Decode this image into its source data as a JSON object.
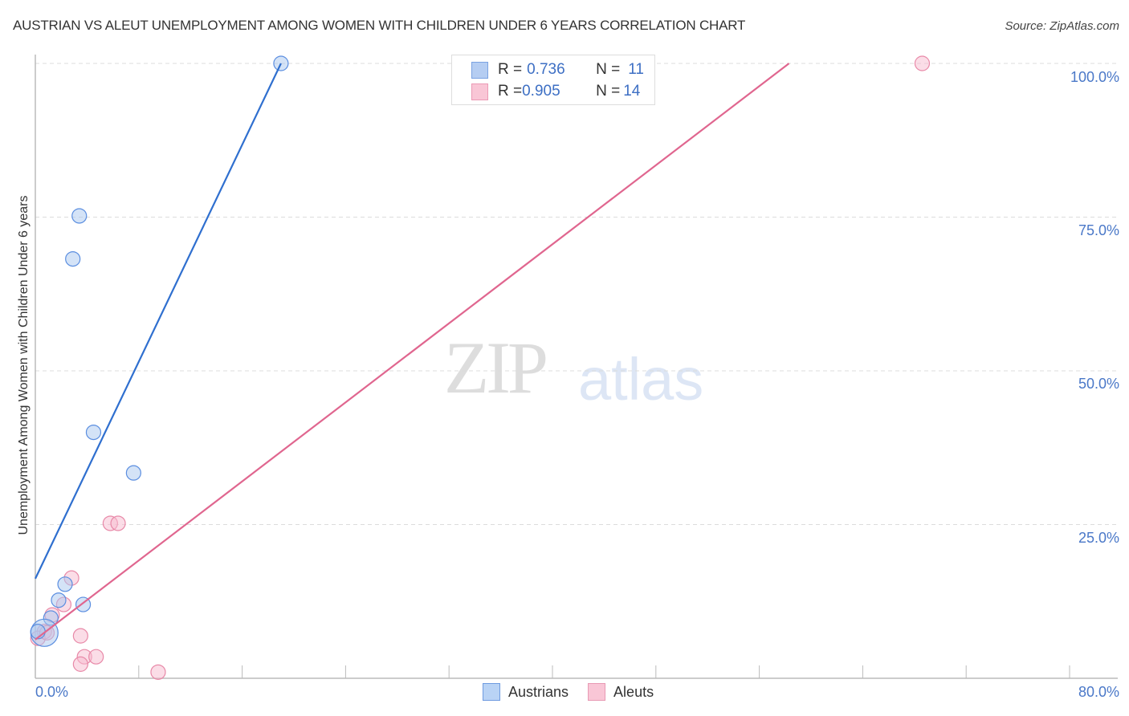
{
  "header": {
    "title": "AUSTRIAN VS ALEUT UNEMPLOYMENT AMONG WOMEN WITH CHILDREN UNDER 6 YEARS CORRELATION CHART",
    "source": "Source: ZipAtlas.com"
  },
  "watermark": {
    "zip": "ZIP",
    "atlas": "atlas"
  },
  "legend": {
    "austrians": {
      "r_label": "R = ",
      "r_value": "0.736",
      "n_label": "N = ",
      "n_value": "11"
    },
    "aleuts": {
      "r_label": "R = ",
      "r_value": "0.905",
      "n_label": "N = ",
      "n_value": "14"
    }
  },
  "axes": {
    "ylabel": "Unemployment Among Women with Children Under 6 years",
    "yticks": [
      "100.0%",
      "75.0%",
      "50.0%",
      "25.0%"
    ],
    "xticks": [
      "0.0%",
      "80.0%"
    ]
  },
  "bottom_legend": {
    "austrians": "Austrians",
    "aleuts": "Aleuts"
  },
  "colors": {
    "austrians_fill": "#a9c8f0",
    "austrians_stroke": "#5b8ee0",
    "austrians_line": "#2f6fcf",
    "aleuts_fill": "#f7bcd0",
    "aleuts_stroke": "#e889a8",
    "aleuts_line": "#e0668f",
    "tick_label": "#4a78c8"
  },
  "chart_data": {
    "type": "scatter",
    "title": "AUSTRIAN VS ALEUT UNEMPLOYMENT AMONG WOMEN WITH CHILDREN UNDER 6 YEARS CORRELATION CHART",
    "xlabel": "",
    "ylabel": "Unemployment Among Women with Children Under 6 years",
    "xlim": [
      0,
      80
    ],
    "ylim": [
      0,
      100
    ],
    "x_tick_labels": [
      "0.0%",
      "80.0%"
    ],
    "y_tick_labels": [
      "25.0%",
      "50.0%",
      "75.0%",
      "100.0%"
    ],
    "grid": "horizontal dashed",
    "legend_position": "top-center and bottom",
    "series": [
      {
        "name": "Austrians",
        "R": 0.736,
        "N": 11,
        "points": [
          {
            "x": 19.0,
            "y": 100.0
          },
          {
            "x": 3.4,
            "y": 75.2
          },
          {
            "x": 2.9,
            "y": 68.2
          },
          {
            "x": 4.5,
            "y": 40.0
          },
          {
            "x": 7.6,
            "y": 33.4
          },
          {
            "x": 2.3,
            "y": 15.3
          },
          {
            "x": 1.8,
            "y": 12.7
          },
          {
            "x": 3.7,
            "y": 12.0
          },
          {
            "x": 1.2,
            "y": 9.8
          },
          {
            "x": 0.7,
            "y": 7.4
          },
          {
            "x": 0.2,
            "y": 7.6
          }
        ],
        "trend_line": {
          "x0": 0,
          "y0": 16.2,
          "x1": 19.0,
          "y1": 100.0
        }
      },
      {
        "name": "Aleuts",
        "R": 0.905,
        "N": 14,
        "points": [
          {
            "x": 68.6,
            "y": 100.0
          },
          {
            "x": 5.8,
            "y": 25.2
          },
          {
            "x": 6.4,
            "y": 25.2
          },
          {
            "x": 2.8,
            "y": 16.3
          },
          {
            "x": 2.2,
            "y": 12.0
          },
          {
            "x": 1.3,
            "y": 10.3
          },
          {
            "x": 0.7,
            "y": 7.6
          },
          {
            "x": 3.5,
            "y": 6.9
          },
          {
            "x": 3.8,
            "y": 3.5
          },
          {
            "x": 4.7,
            "y": 3.5
          },
          {
            "x": 3.5,
            "y": 2.3
          },
          {
            "x": 9.5,
            "y": 1.0
          },
          {
            "x": 0.2,
            "y": 6.5
          },
          {
            "x": 0.9,
            "y": 7.4
          }
        ],
        "trend_line": {
          "x0": 0,
          "y0": 6.3,
          "x1": 58.3,
          "y1": 100.0
        }
      }
    ]
  }
}
